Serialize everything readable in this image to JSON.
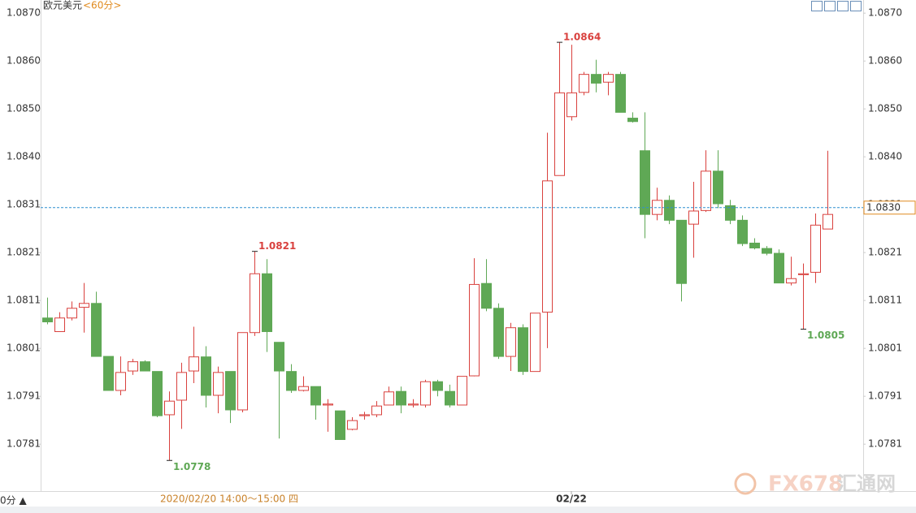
{
  "chart_data": {
    "type": "candlestick",
    "title": "欧元美元",
    "period": "<60分>",
    "period_button": "0分 ▲",
    "crosshair_label": "2020/02/20 14:00～15:00 四",
    "watermark": [
      "FX678",
      "汇通网"
    ],
    "categories": [
      null,
      null,
      null,
      null,
      null,
      null,
      null,
      null,
      null,
      null,
      null,
      null,
      null,
      null,
      null,
      null,
      null,
      null,
      null,
      null,
      null,
      null,
      null,
      null,
      null,
      null,
      null,
      null,
      null,
      null,
      null,
      null,
      null,
      null,
      null,
      null,
      null,
      null,
      null,
      null,
      null,
      null,
      null,
      "02/22",
      null,
      null,
      null,
      null,
      null,
      null,
      null,
      null,
      null,
      null,
      null,
      null,
      null,
      null,
      null,
      null,
      null,
      null,
      null,
      null,
      null
    ],
    "open": [
      1.08073,
      1.08045,
      1.08073,
      1.08095,
      1.08103,
      1.07994,
      1.07924,
      1.07964,
      1.07983,
      1.07963,
      1.07874,
      1.07904,
      1.07964,
      1.07993,
      1.07914,
      1.07963,
      1.07884,
      1.08043,
      1.08164,
      1.08023,
      1.07963,
      1.07924,
      1.07932,
      1.07894,
      1.07882,
      1.07844,
      1.07872,
      1.07874,
      1.07894,
      1.07922,
      1.07894,
      1.07894,
      1.07942,
      1.07922,
      1.07894,
      1.07954,
      1.08144,
      1.08093,
      1.07994,
      1.08053,
      1.07963,
      1.08085,
      1.08366,
      1.08487,
      1.08537,
      1.08574,
      1.08558,
      1.08574,
      1.08484,
      1.08417,
      1.08286,
      1.08315,
      1.08274,
      1.08266,
      1.08294,
      1.08375,
      1.08304,
      1.08274,
      1.08227,
      1.08216,
      1.08206,
      1.08145,
      1.08162,
      1.08167,
      1.08256
    ],
    "high": [
      1.08115,
      1.08085,
      1.08107,
      1.08145,
      1.08127,
      1.07994,
      1.07994,
      1.07989,
      1.07986,
      1.07963,
      1.07922,
      1.07981,
      1.08055,
      1.08015,
      1.07973,
      1.07963,
      1.08043,
      1.0821,
      1.08194,
      1.08023,
      1.07978,
      1.07953,
      1.07932,
      1.07906,
      1.07882,
      1.07869,
      1.0788,
      1.07902,
      1.07932,
      1.07932,
      1.07906,
      1.07946,
      1.07946,
      1.07936,
      1.07953,
      1.08196,
      1.08194,
      1.08103,
      1.08063,
      1.0806,
      1.08083,
      1.08454,
      1.0864,
      1.08635,
      1.08579,
      1.08604,
      1.08579,
      1.08579,
      1.08496,
      1.08496,
      1.08341,
      1.08325,
      1.08274,
      1.08353,
      1.08418,
      1.08418,
      1.08316,
      1.08284,
      1.08237,
      1.08221,
      1.08214,
      1.08199,
      1.08185,
      1.08288,
      1.08417
    ],
    "low": [
      1.0806,
      1.08045,
      1.08068,
      1.08043,
      1.07994,
      1.07924,
      1.07914,
      1.07956,
      1.07964,
      1.07869,
      1.0778,
      1.07845,
      1.07939,
      1.07889,
      1.07877,
      1.07857,
      1.07879,
      1.08036,
      1.08003,
      1.07825,
      1.07919,
      1.07922,
      1.07864,
      1.07839,
      1.07823,
      1.07842,
      1.07864,
      1.07869,
      1.07894,
      1.07877,
      1.07889,
      1.07889,
      1.07912,
      1.07889,
      1.07894,
      1.07953,
      1.08087,
      1.07989,
      1.07964,
      1.07956,
      1.07963,
      1.08011,
      1.08366,
      1.08479,
      1.08531,
      1.08537,
      1.08531,
      1.08496,
      1.08475,
      1.08237,
      1.08274,
      1.08266,
      1.08107,
      1.08197,
      1.08291,
      1.08299,
      1.08266,
      1.08221,
      1.08214,
      1.08202,
      1.08145,
      1.0814,
      1.0805,
      1.08145,
      1.08256
    ],
    "close": [
      1.08065,
      1.08073,
      1.08093,
      1.08103,
      1.07994,
      1.07924,
      1.07961,
      1.07983,
      1.07964,
      1.07872,
      1.07902,
      1.07961,
      1.07993,
      1.07914,
      1.07961,
      1.07884,
      1.08043,
      1.08164,
      1.08045,
      1.07964,
      1.07924,
      1.07932,
      1.07894,
      1.07896,
      1.07823,
      1.07862,
      1.07874,
      1.07892,
      1.07921,
      1.07894,
      1.07896,
      1.07942,
      1.07924,
      1.07894,
      1.07953,
      1.08142,
      1.08093,
      1.07994,
      1.08053,
      1.07963,
      1.08083,
      1.08355,
      1.08536,
      1.08536,
      1.08574,
      1.08556,
      1.08574,
      1.08496,
      1.08477,
      1.08286,
      1.08315,
      1.08274,
      1.08144,
      1.08293,
      1.08375,
      1.08308,
      1.08274,
      1.08226,
      1.08217,
      1.08206,
      1.08145,
      1.08154,
      1.08164,
      1.08264,
      1.08286
    ],
    "ylim": [
      1.07717,
      1.08727
    ],
    "yticks": [
      {
        "value": 1.087,
        "label": "1.0870"
      },
      {
        "value": 1.086015,
        "label": "1.0860"
      },
      {
        "value": 1.08503,
        "label": "1.0850"
      },
      {
        "value": 1.084045,
        "label": "1.0840"
      },
      {
        "value": 1.08306,
        "label": "1.0831"
      },
      {
        "value": 1.082075,
        "label": "1.0821"
      },
      {
        "value": 1.08109,
        "label": "1.0811"
      },
      {
        "value": 1.080105,
        "label": "1.0801"
      },
      {
        "value": 1.07912,
        "label": "1.0791"
      },
      {
        "value": 1.078135,
        "label": "1.0781"
      }
    ],
    "grid": false,
    "current": {
      "value": 1.083,
      "label": "1.0830"
    },
    "up_color": "#d9413e",
    "down_color": "#5fa855",
    "current_color": "#2f8fd0"
  }
}
